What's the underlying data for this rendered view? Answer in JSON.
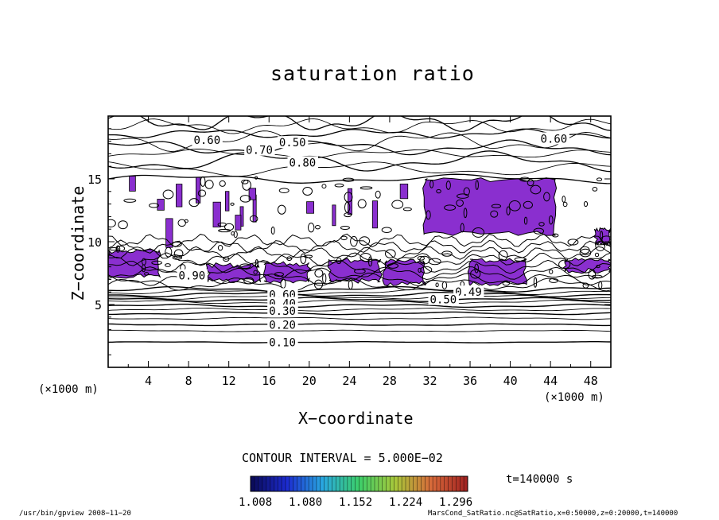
{
  "chart_data": {
    "type": "heatmap",
    "title": "saturation ratio",
    "xlabel": "X−coordinate",
    "ylabel": "Z−coordinate",
    "x_unit": "(×1000 m)",
    "z_unit": "(×1000 m)",
    "xlim": [
      0,
      50
    ],
    "ylim": [
      0,
      20
    ],
    "x_ticks": [
      4,
      8,
      12,
      16,
      20,
      24,
      28,
      32,
      36,
      40,
      44,
      48
    ],
    "y_ticks": [
      5,
      10,
      15
    ],
    "contour_labels": [
      {
        "text": "0.60",
        "x": 8.5,
        "z": 18.1
      },
      {
        "text": "0.70",
        "x": 13.7,
        "z": 17.3
      },
      {
        "text": "0.50",
        "x": 17.0,
        "z": 17.9
      },
      {
        "text": "0.80",
        "x": 18.0,
        "z": 16.3
      },
      {
        "text": "0.60",
        "x": 43.0,
        "z": 18.2
      },
      {
        "text": "0.90",
        "x": 7.0,
        "z": 7.3
      },
      {
        "text": "0.60",
        "x": 16.0,
        "z": 5.8
      },
      {
        "text": "0.40",
        "x": 16.0,
        "z": 5.1
      },
      {
        "text": "0.30",
        "x": 16.0,
        "z": 4.5
      },
      {
        "text": "0.20",
        "x": 16.0,
        "z": 3.4
      },
      {
        "text": "0.10",
        "x": 16.0,
        "z": 2.0
      },
      {
        "text": "0.49",
        "x": 34.5,
        "z": 6.0
      },
      {
        "text": "0.50",
        "x": 32.0,
        "z": 5.4
      }
    ],
    "purple_regions": [
      {
        "x": [
          31.5,
          44.5
        ],
        "z": [
          10.6,
          15.0
        ]
      },
      {
        "x": [
          0.0,
          5.0
        ],
        "z": [
          7.2,
          9.3
        ]
      },
      {
        "x": [
          10.0,
          15.0
        ],
        "z": [
          6.8,
          8.2
        ]
      },
      {
        "x": [
          15.5,
          20.0
        ],
        "z": [
          6.8,
          8.3
        ]
      },
      {
        "x": [
          22.0,
          27.0
        ],
        "z": [
          6.8,
          8.6
        ]
      },
      {
        "x": [
          27.5,
          31.5
        ],
        "z": [
          6.6,
          8.5
        ]
      },
      {
        "x": [
          36.0,
          41.5
        ],
        "z": [
          6.6,
          8.6
        ]
      },
      {
        "x": [
          45.5,
          50.0
        ],
        "z": [
          7.6,
          8.6
        ]
      },
      {
        "x": [
          48.5,
          50.0
        ],
        "z": [
          9.8,
          11.0
        ]
      }
    ],
    "colorbar": {
      "ticks": [
        "1.008",
        "1.080",
        "1.152",
        "1.224",
        "1.296"
      ],
      "colors": [
        "#0a0a55",
        "#1c2bd0",
        "#29a8e0",
        "#3ccf6a",
        "#a8c83a",
        "#d86a3a",
        "#a02020"
      ]
    },
    "purple_color": "#8a2fcf"
  },
  "contour_interval": "CONTOUR INTERVAL = 5.000E−02",
  "time_label": "t=140000  s",
  "footer_left": "/usr/bin/gpview   2008−11−20",
  "footer_right": "MarsCond_SatRatio.nc@SatRatio,x=0:50000,z=0:20000,t=140000"
}
